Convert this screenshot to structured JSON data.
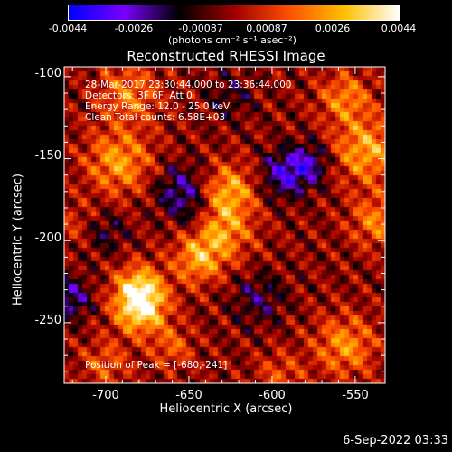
{
  "colorbar": {
    "ticks": [
      "-0.0044",
      "-0.0026",
      "-0.00087",
      "0.00087",
      "0.0026",
      "0.0044"
    ],
    "units": "(photons cm⁻² s⁻¹ asec⁻²)"
  },
  "title": "Reconstructed RHESSI Image",
  "info": {
    "time": "28-Mar-2017 23:30:44.000 to 23:36:44.000",
    "detectors": "Detectors: 3F 6F, Att 0",
    "energy": "Energy Range: 12.0 - 25.0 keV",
    "clean": "Clean     Total counts: 6.58E+03",
    "peak": "Position of Peak = [-680,-241]"
  },
  "axes": {
    "xlabel": "Heliocentric X (arcsec)",
    "ylabel": "Heliocentric Y (arcsec)",
    "xticks": [
      "-700",
      "-650",
      "-600",
      "-550"
    ],
    "yticks": [
      "-100",
      "-150",
      "-200",
      "-250"
    ]
  },
  "footer": "6-Sep-2022 03:33",
  "chart_data": {
    "type": "heatmap",
    "title": "Reconstructed RHESSI Image",
    "xlabel": "Heliocentric X (arcsec)",
    "ylabel": "Heliocentric Y (arcsec)",
    "xlim": [
      -725,
      -532
    ],
    "ylim": [
      -287,
      -94
    ],
    "xticks": [
      -700,
      -650,
      -600,
      -550
    ],
    "yticks": [
      -100,
      -150,
      -200,
      -250
    ],
    "colorbar_range": [
      -0.0044,
      0.0044
    ],
    "colorbar_ticks": [
      -0.0044,
      -0.0026,
      -0.00087,
      0.00087,
      0.0026,
      0.0044
    ],
    "colormap": [
      "#0000ff",
      "#7a00ff",
      "#000000",
      "#a00000",
      "#ff5000",
      "#ffc000",
      "#ffffff"
    ],
    "peak_position": [
      -680,
      -241
    ],
    "sources": [
      {
        "x": -679,
        "y": -241,
        "sigma": 11,
        "amp": 0.004
      },
      {
        "x": -680,
        "y": -228,
        "sigma": 10,
        "amp": 0.0026
      },
      {
        "x": -692,
        "y": -152,
        "sigma": 14,
        "amp": 0.0026
      },
      {
        "x": -686,
        "y": -110,
        "sigma": 13,
        "amp": 0.002
      },
      {
        "x": -633,
        "y": -193,
        "sigma": 14,
        "amp": 0.003
      },
      {
        "x": -625,
        "y": -168,
        "sigma": 11,
        "amp": 0.0024
      },
      {
        "x": -645,
        "y": -213,
        "sigma": 10,
        "amp": 0.0022
      },
      {
        "x": -543,
        "y": -145,
        "sigma": 14,
        "amp": 0.0028
      },
      {
        "x": -556,
        "y": -113,
        "sigma": 11,
        "amp": 0.0022
      },
      {
        "x": -537,
        "y": -188,
        "sigma": 11,
        "amp": 0.0022
      },
      {
        "x": -556,
        "y": -264,
        "sigma": 13,
        "amp": 0.0024
      },
      {
        "x": -595,
        "y": -282,
        "sigma": 10,
        "amp": 0.0014
      },
      {
        "x": -700,
        "y": -275,
        "sigma": 10,
        "amp": 0.0016
      },
      {
        "x": -720,
        "y": -190,
        "sigma": 9,
        "amp": 0.001
      },
      {
        "x": -660,
        "y": -265,
        "sigma": 9,
        "amp": 0.0016
      },
      {
        "x": -593,
        "y": -160,
        "sigma": 10,
        "amp": -0.0024
      },
      {
        "x": -578,
        "y": -153,
        "sigma": 9,
        "amp": -0.0022
      },
      {
        "x": -655,
        "y": -170,
        "sigma": 11,
        "amp": -0.0022
      },
      {
        "x": -645,
        "y": -186,
        "sigma": 9,
        "amp": -0.0016
      },
      {
        "x": -722,
        "y": -235,
        "sigma": 9,
        "amp": -0.0022
      },
      {
        "x": -608,
        "y": -235,
        "sigma": 11,
        "amp": -0.0014
      },
      {
        "x": -700,
        "y": -195,
        "sigma": 9,
        "amp": -0.0012
      },
      {
        "x": -625,
        "y": -112,
        "sigma": 10,
        "amp": -0.001
      }
    ]
  }
}
